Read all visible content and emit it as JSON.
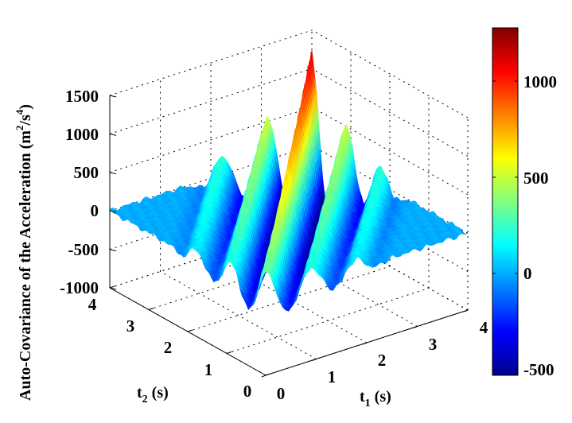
{
  "chart_data": {
    "type": "surface",
    "title": "",
    "xlabel": "t1 (s)",
    "xlabel_main": "t",
    "xlabel_sub": "1",
    "xlabel_unit": " (s)",
    "ylabel_main": "t",
    "ylabel_sub": "2",
    "ylabel_unit": " (s)",
    "zlabel": "Auto-Covariance of the Acceleration (m2/s4)",
    "zlabel_main": "Auto-Covariance of the Acceleration (m",
    "zlabel_sup1": "2",
    "zlabel_mid": "/s",
    "zlabel_sup2": "4",
    "zlabel_end": ")",
    "xlim": [
      0,
      4
    ],
    "ylim": [
      0,
      4
    ],
    "zlim": [
      -1000,
      1500
    ],
    "xticks": [
      "0",
      "1",
      "2",
      "3",
      "4"
    ],
    "yticks": [
      "0",
      "1",
      "2",
      "3",
      "4"
    ],
    "zticks": [
      "-1000",
      "-500",
      "0",
      "500",
      "1000",
      "1500"
    ],
    "grid": true,
    "colormap": "jet",
    "clim": [
      -530,
      1277
    ],
    "colorbar": {
      "position": "right",
      "ticks": [
        "-500",
        "0",
        "500",
        "1000"
      ]
    },
    "diagonal_peak": {
      "t": [
        0,
        1,
        2,
        3,
        4
      ],
      "z": [
        350,
        550,
        800,
        1000,
        1250
      ]
    },
    "lag_profile": {
      "lag": [
        0,
        0.15,
        0.3,
        0.45,
        0.6,
        0.75,
        0.9,
        1.05,
        1.2,
        1.35,
        1.5,
        1.65,
        1.8,
        1.95,
        2.1,
        2.5,
        4
      ],
      "relative_z": [
        1,
        0.45,
        -0.4,
        -0.71,
        -0.32,
        0.28,
        0.5,
        0.22,
        -0.2,
        -0.35,
        -0.16,
        0.14,
        0.25,
        0.11,
        -0.1,
        0,
        0
      ]
    }
  }
}
